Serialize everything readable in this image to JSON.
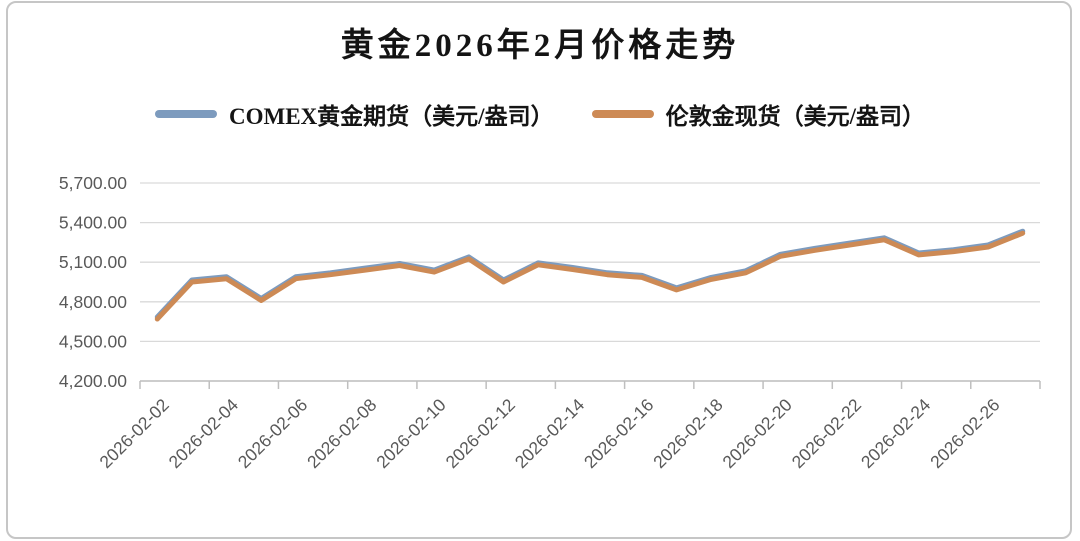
{
  "title": "黄金2026年2月价格走势",
  "legend": [
    {
      "label": "COMEX黄金期货（美元/盎司）",
      "color": "#7D9BBE"
    },
    {
      "label": "伦敦金现货（美元/盎司）",
      "color": "#CD8A55"
    }
  ],
  "colors": {
    "axis_text": "#595959",
    "gridline": "#d9d9d9",
    "axis_line": "#bfbfbf"
  },
  "chart_data": {
    "type": "line",
    "title": "黄金2026年2月价格走势",
    "xlabel": "",
    "ylabel": "",
    "ylim": [
      4200,
      5700
    ],
    "grid": true,
    "legend_position": "top",
    "y_tick_labels": [
      "5,700.00",
      "5,400.00",
      "5,100.00",
      "4,800.00",
      "4,500.00",
      "4,200.00"
    ],
    "x": [
      "2026-02-02",
      "2026-02-03",
      "2026-02-04",
      "2026-02-05",
      "2026-02-06",
      "2026-02-07",
      "2026-02-08",
      "2026-02-09",
      "2026-02-10",
      "2026-02-11",
      "2026-02-12",
      "2026-02-13",
      "2026-02-14",
      "2026-02-15",
      "2026-02-16",
      "2026-02-17",
      "2026-02-18",
      "2026-02-19",
      "2026-02-20",
      "2026-02-21",
      "2026-02-22",
      "2026-02-23",
      "2026-02-24",
      "2026-02-25",
      "2026-02-26",
      "2026-02-27"
    ],
    "x_tick_labels": [
      "2026-02-02",
      "2026-02-04",
      "2026-02-06",
      "2026-02-08",
      "2026-02-10",
      "2026-02-12",
      "2026-02-14",
      "2026-02-16",
      "2026-02-18",
      "2026-02-20",
      "2026-02-22",
      "2026-02-24",
      "2026-02-26"
    ],
    "series": [
      {
        "name": "COMEX黄金期货（美元/盎司）",
        "color": "#7D9BBE",
        "values": [
          4685,
          4965,
          4990,
          4825,
          4990,
          5020,
          5055,
          5090,
          5040,
          5140,
          4965,
          5095,
          5060,
          5020,
          5000,
          4905,
          4985,
          5035,
          5160,
          5205,
          5245,
          5285,
          5170,
          5195,
          5230,
          5335
        ]
      },
      {
        "name": "伦敦金现货（美元/盎司）",
        "color": "#CD8A55",
        "values": [
          4670,
          4950,
          4975,
          4810,
          4975,
          5005,
          5040,
          5075,
          5025,
          5125,
          4950,
          5080,
          5045,
          5005,
          4985,
          4890,
          4970,
          5020,
          5145,
          5190,
          5230,
          5270,
          5155,
          5180,
          5215,
          5320
        ]
      }
    ]
  }
}
